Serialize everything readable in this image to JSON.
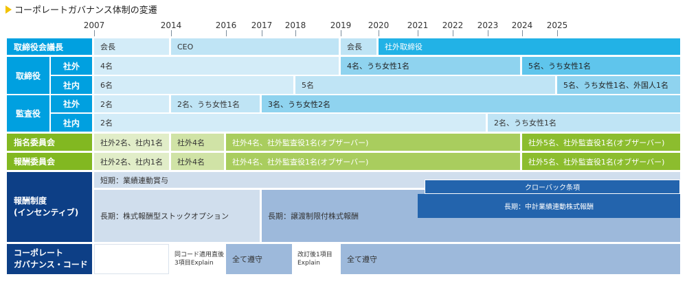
{
  "title": "コーポレートガバナンス体制の変遷",
  "years": [
    "2007",
    "2014",
    "2016",
    "2017",
    "2018",
    "2019",
    "2020",
    "2021",
    "2022",
    "2023",
    "2024",
    "2025"
  ],
  "rows": {
    "chair": {
      "label": "取締役会議長",
      "cells": [
        "会長",
        "CEO",
        "会長",
        "社外取締役"
      ]
    },
    "board": {
      "label": "取締役",
      "outside": {
        "label": "社外",
        "cells": [
          "4名",
          "4名、うち女性1名",
          "5名、うち女性1名"
        ]
      },
      "inside": {
        "label": "社内",
        "cells": [
          "6名",
          "5名",
          "5名、うち女性1名、外国人1名"
        ]
      }
    },
    "audit": {
      "label": "監査役",
      "outside": {
        "label": "社外",
        "cells": [
          "2名",
          "2名、うち女性1名",
          "3名、うち女性2名"
        ]
      },
      "inside": {
        "label": "社内",
        "cells": [
          "2名",
          "2名、うち女性1名"
        ]
      }
    },
    "nomination": {
      "label": "指名委員会",
      "cells": [
        "社外2名、社内1名",
        "社外4名",
        "社外4名、社外監査役1名(オブザーバー)",
        "社外5名、社外監査役1名(オブザーバー)"
      ]
    },
    "compensation": {
      "label": "報酬委員会",
      "cells": [
        "社外2名、社内1名",
        "社外4名",
        "社外4名、社外監査役1名(オブザーバー)",
        "社外5名、社外監査役1名(オブザーバー)"
      ]
    },
    "remuneration": {
      "label_line1": "報酬制度",
      "label_line2": "(インセンティブ)",
      "short_term": "短期：業績連動賞与",
      "clawback": "クローバック条項",
      "long_stock_option": "長期：株式報酬型ストックオプション",
      "long_restricted": "長期：譲渡制限付株式報酬",
      "long_performance": "長期：中計業績連動株式報酬"
    },
    "code": {
      "label_line1": "コーポレート",
      "label_line2": "ガバナンス・コード",
      "cells": [
        {
          "line1": "同コード適用直後",
          "line2": "3項目Explain"
        },
        {
          "line1": "全て遵守"
        },
        {
          "line1": "改訂後1項目",
          "line2": "Explain"
        },
        {
          "line1": "全て遵守"
        }
      ]
    }
  },
  "colors": {
    "board_header": "#00a0e0",
    "committee_header": "#82b821",
    "remuneration_header": "#0d3f86",
    "accent": "#f2c200"
  }
}
